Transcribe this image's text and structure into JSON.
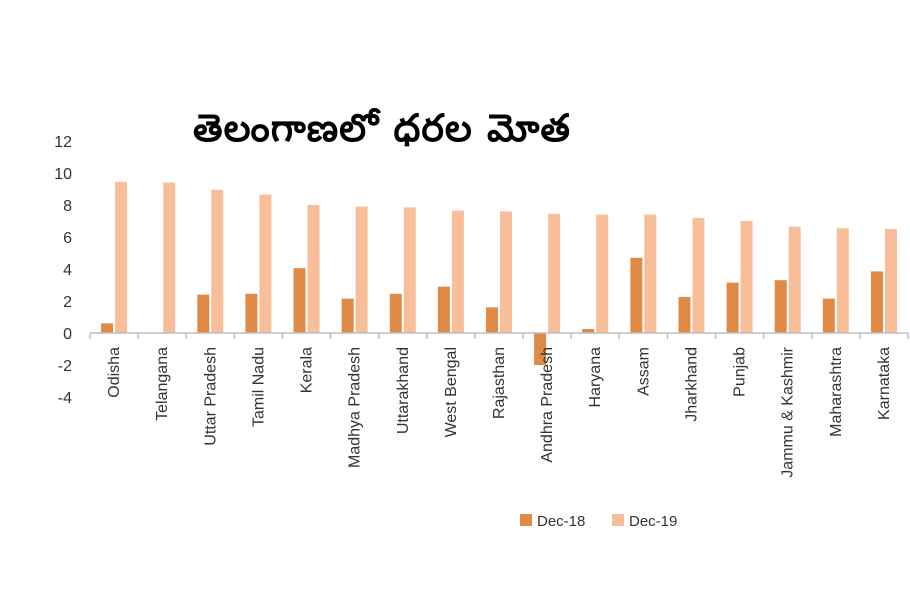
{
  "chart_data": {
    "type": "bar",
    "title": "తెలంగాణలో ధరల మోత",
    "categories": [
      "Odisha",
      "Telangana",
      "Uttar Pradesh",
      "Tamil Nadu",
      "Kerala",
      "Madhya Pradesh",
      "Uttarakhand",
      "West Bengal",
      "Rajasthan",
      "Andhra Pradesh",
      "Haryana",
      "Assam",
      "Jharkhand",
      "Punjab",
      "Jammu & Kashmir",
      "Maharashtra",
      "Karnataka"
    ],
    "series": [
      {
        "name": "Dec-18",
        "color": "#E08A45",
        "values": [
          0.6,
          0.0,
          2.4,
          2.45,
          4.05,
          2.15,
          2.45,
          2.9,
          1.6,
          -2.0,
          0.25,
          4.7,
          2.25,
          3.15,
          3.3,
          2.15,
          3.85
        ]
      },
      {
        "name": "Dec-19",
        "color": "#F8BE9A",
        "values": [
          9.45,
          9.4,
          8.95,
          8.65,
          8.0,
          7.9,
          7.85,
          7.65,
          7.6,
          7.45,
          7.4,
          7.4,
          7.2,
          7.0,
          6.65,
          6.55,
          6.5
        ]
      }
    ],
    "yticks": [
      12,
      10,
      8,
      6,
      4,
      2,
      0,
      -2,
      -4
    ],
    "ylim": [
      -4,
      12
    ],
    "grid": false,
    "legend": "bottom"
  }
}
